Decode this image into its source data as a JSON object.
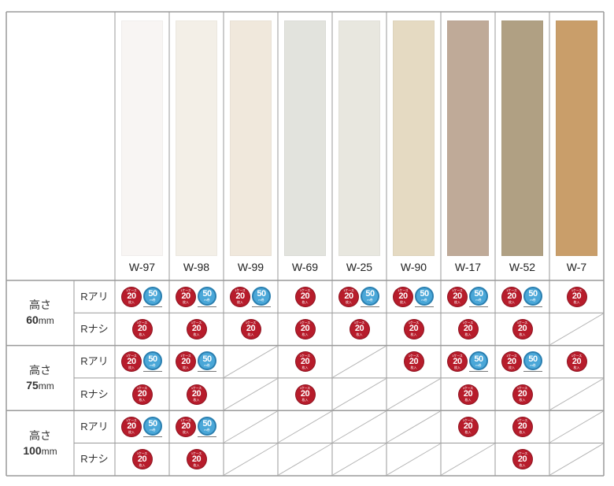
{
  "colors": {
    "border": "#9a9a9a",
    "badge_20": "#b71c2b",
    "badge_50": "#4aa7d8"
  },
  "colors_list": [
    {
      "code": "W-97",
      "swatch": "#f8f5f3"
    },
    {
      "code": "W-98",
      "swatch": "#f3efe7"
    },
    {
      "code": "W-99",
      "swatch": "#f0e8dc"
    },
    {
      "code": "W-69",
      "swatch": "#e2e3dd"
    },
    {
      "code": "W-25",
      "swatch": "#e8e7df"
    },
    {
      "code": "W-90",
      "swatch": "#e5dac2"
    },
    {
      "code": "W-17",
      "swatch": "#bfaa98"
    },
    {
      "code": "W-52",
      "swatch": "#b0a083"
    },
    {
      "code": "W-7",
      "swatch": "#c99e6a"
    }
  ],
  "badges": {
    "b20": {
      "top": "1ケース",
      "num": "20",
      "unit": "枚入"
    },
    "b50": {
      "num": "50",
      "unit": "m巻"
    }
  },
  "heights": [
    {
      "label_pre": "高さ",
      "num": "60",
      "unit": "mm",
      "rows": [
        {
          "label": "Rアリ",
          "cells": [
            "20+50",
            "20+50",
            "20+50",
            "20",
            "20+50",
            "20+50",
            "20+50",
            "20+50",
            "20"
          ]
        },
        {
          "label": "Rナシ",
          "cells": [
            "20",
            "20",
            "20",
            "20",
            "20",
            "20",
            "20",
            "20",
            "x"
          ]
        }
      ]
    },
    {
      "label_pre": "高さ",
      "num": "75",
      "unit": "mm",
      "rows": [
        {
          "label": "Rアリ",
          "cells": [
            "20+50",
            "20+50",
            "x",
            "20",
            "x",
            "20",
            "20+50",
            "20+50",
            "20"
          ]
        },
        {
          "label": "Rナシ",
          "cells": [
            "20",
            "20",
            "x",
            "20",
            "x",
            "x",
            "20",
            "20",
            "x"
          ]
        }
      ]
    },
    {
      "label_pre": "高さ",
      "num": "100",
      "unit": "mm",
      "rows": [
        {
          "label": "Rアリ",
          "cells": [
            "20+50",
            "20+50",
            "x",
            "x",
            "x",
            "x",
            "20",
            "20",
            "x"
          ]
        },
        {
          "label": "Rナシ",
          "cells": [
            "20",
            "20",
            "x",
            "x",
            "x",
            "x",
            "x",
            "20",
            "x"
          ]
        }
      ]
    }
  ]
}
